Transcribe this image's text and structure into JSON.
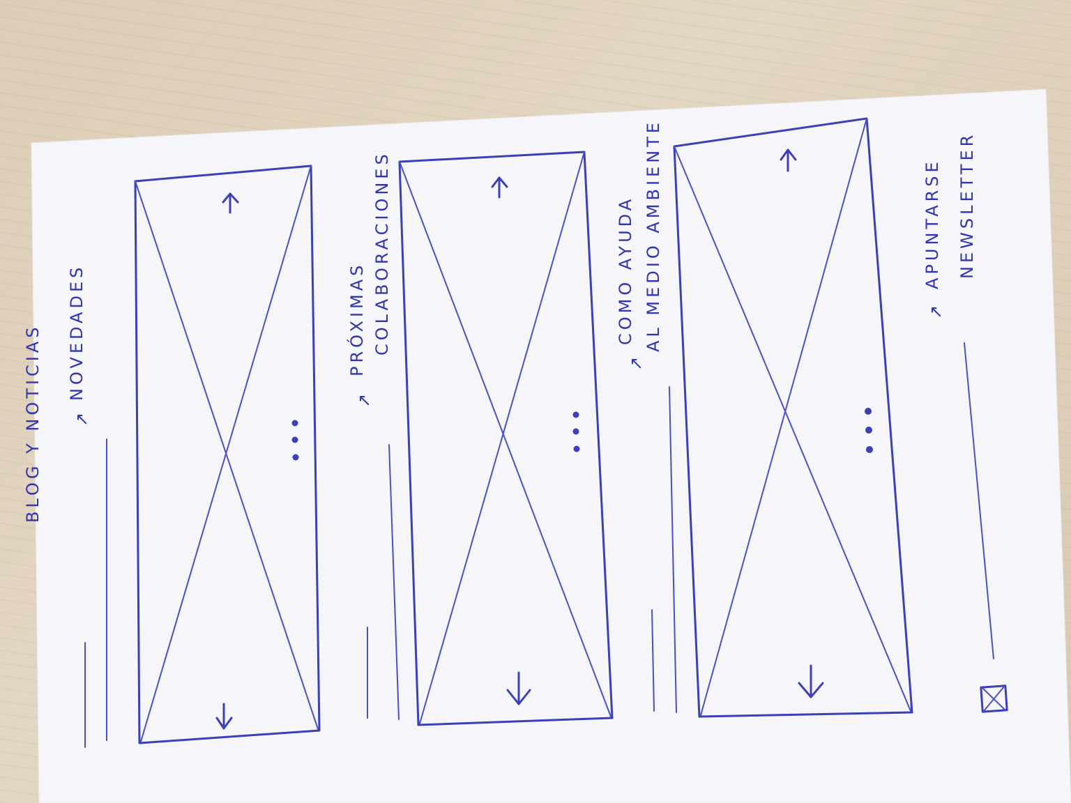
{
  "sketch": {
    "title": "BLOG Y NOTICIAS",
    "sections": [
      {
        "arrow": "↗",
        "label_lines": [
          "NOVEDADES"
        ]
      },
      {
        "arrow": "↗",
        "label_lines": [
          "PRÓXIMAS",
          "COLABORACIONES"
        ]
      },
      {
        "arrow": "↗",
        "label_lines": [
          "COMO AYUDA",
          "AL MEDIO AMBIENTE"
        ]
      },
      {
        "arrow": "↗",
        "label_lines": [
          "APUNTARSE",
          "NEWSLETTER"
        ]
      }
    ],
    "ink_color": "#3b3fb8",
    "paper_color": "#f6f6fb",
    "carousel_controls": [
      "arrow-up-icon",
      "arrow-down-icon",
      "pagination-dots"
    ],
    "checkbox_icon": "checkbox-crossed-icon"
  }
}
